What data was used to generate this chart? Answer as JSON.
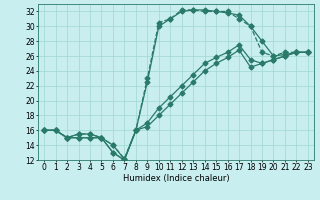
{
  "xlabel": "Humidex (Indice chaleur)",
  "bg_color": "#c8eef0",
  "line_color": "#2a7a6a",
  "grid_color": "#a0d8d0",
  "xlim": [
    -0.5,
    23.5
  ],
  "ylim": [
    12,
    33
  ],
  "xticks": [
    0,
    1,
    2,
    3,
    4,
    5,
    6,
    7,
    8,
    9,
    10,
    11,
    12,
    13,
    14,
    15,
    16,
    17,
    18,
    19,
    20,
    21,
    22,
    23
  ],
  "yticks": [
    12,
    14,
    16,
    18,
    20,
    22,
    24,
    26,
    28,
    30,
    32
  ],
  "lines": [
    {
      "x": [
        0,
        1,
        2,
        3,
        4,
        5,
        6,
        7,
        8,
        9,
        10,
        11,
        12,
        13,
        14,
        15,
        16,
        17,
        18,
        19,
        20,
        21,
        22,
        23
      ],
      "y": [
        16,
        16,
        15,
        15.5,
        15.5,
        15,
        14,
        12.2,
        16,
        23,
        30.5,
        31,
        32.2,
        32.2,
        32,
        32,
        32,
        31,
        30,
        26.5,
        26,
        26.5,
        26.5,
        26.5
      ],
      "style": "--",
      "marker": "D",
      "markersize": 2.5,
      "linewidth": 0.9
    },
    {
      "x": [
        0,
        1,
        2,
        3,
        4,
        5,
        6,
        7,
        8,
        9,
        10,
        11,
        12,
        13,
        14,
        15,
        16,
        17,
        18,
        19,
        20,
        21,
        22,
        23
      ],
      "y": [
        16,
        16,
        15,
        15.5,
        15.5,
        15,
        14,
        12.1,
        16,
        22.5,
        30,
        31,
        32,
        32.2,
        32.2,
        32,
        31.8,
        31.5,
        30,
        28,
        26,
        26.2,
        26.5,
        26.5
      ],
      "style": "-",
      "marker": "D",
      "markersize": 2.5,
      "linewidth": 0.9
    },
    {
      "x": [
        0,
        1,
        2,
        3,
        4,
        5,
        6,
        7,
        8,
        9,
        10,
        11,
        12,
        13,
        14,
        15,
        16,
        17,
        18,
        19,
        20,
        21,
        22,
        23
      ],
      "y": [
        16,
        16,
        15,
        15,
        15,
        15,
        13,
        12,
        16,
        16.5,
        18,
        19.5,
        21,
        22.5,
        24,
        25,
        25.8,
        26.8,
        24.5,
        25,
        25.5,
        26,
        26.5,
        26.5
      ],
      "style": "-",
      "marker": "D",
      "markersize": 2.5,
      "linewidth": 0.9
    },
    {
      "x": [
        0,
        1,
        2,
        3,
        4,
        5,
        6,
        7,
        8,
        9,
        10,
        11,
        12,
        13,
        14,
        15,
        16,
        17,
        18,
        19,
        20,
        21,
        22,
        23
      ],
      "y": [
        16,
        16,
        15,
        15,
        15,
        15,
        13,
        12,
        16,
        17,
        19,
        20.5,
        22,
        23.5,
        25,
        25.8,
        26.5,
        27.5,
        25.5,
        25,
        25.5,
        26,
        26.5,
        26.5
      ],
      "style": "-",
      "marker": "D",
      "markersize": 2.5,
      "linewidth": 0.9
    }
  ],
  "font_size": 6,
  "tick_fontsize": 5.5
}
